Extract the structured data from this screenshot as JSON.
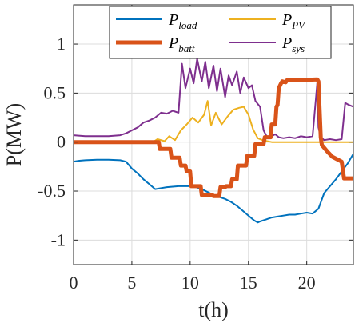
{
  "chart_data": {
    "type": "line",
    "xlabel": "t(h)",
    "ylabel": "P(MW)",
    "xlim": [
      0,
      24
    ],
    "ylim": [
      -1.25,
      1.4
    ],
    "xticks": [
      0,
      5,
      10,
      15,
      20
    ],
    "xtick_labels": [
      "0",
      "5",
      "10",
      "15",
      "20"
    ],
    "yticks": [
      -1,
      -0.5,
      0,
      0.5,
      1
    ],
    "ytick_labels": [
      "-1",
      "-0.5",
      "0",
      "0.5",
      "1"
    ],
    "grid": true,
    "legend_position": "top-center",
    "series": [
      {
        "name": "P_load",
        "legend_main": "P",
        "legend_sub": "load",
        "color": "#0072BD",
        "linewidth": 2,
        "x": [
          0,
          0.5,
          1,
          2,
          3,
          4,
          4.5,
          5,
          5.5,
          6,
          6.5,
          7,
          7.5,
          8,
          9,
          10,
          10.5,
          11,
          11.5,
          12,
          12.5,
          13,
          13.5,
          14,
          14.5,
          15,
          15.5,
          15.8,
          16,
          16.5,
          17,
          17.5,
          18,
          18.5,
          19,
          19.5,
          20,
          20.5,
          21,
          21.5,
          22,
          22.5,
          23,
          23.5,
          24
        ],
        "y": [
          -0.2,
          -0.19,
          -0.185,
          -0.18,
          -0.18,
          -0.185,
          -0.2,
          -0.27,
          -0.32,
          -0.38,
          -0.43,
          -0.48,
          -0.47,
          -0.46,
          -0.45,
          -0.45,
          -0.46,
          -0.48,
          -0.51,
          -0.54,
          -0.56,
          -0.58,
          -0.61,
          -0.65,
          -0.7,
          -0.75,
          -0.8,
          -0.82,
          -0.81,
          -0.79,
          -0.77,
          -0.76,
          -0.75,
          -0.74,
          -0.74,
          -0.73,
          -0.72,
          -0.73,
          -0.68,
          -0.52,
          -0.45,
          -0.38,
          -0.3,
          -0.22,
          -0.12
        ]
      },
      {
        "name": "P_PV",
        "legend_main": "P",
        "legend_sub": "PV",
        "color": "#EDB120",
        "linewidth": 2,
        "x": [
          0,
          6.8,
          7.2,
          7.8,
          8.2,
          8.7,
          9.2,
          9.7,
          10.2,
          10.7,
          11.2,
          11.5,
          11.8,
          12.2,
          12.7,
          13.2,
          13.7,
          14.2,
          14.6,
          15.0,
          15.4,
          15.8,
          16.2,
          17,
          24
        ],
        "y": [
          0,
          0,
          0.03,
          0.01,
          0.06,
          0.02,
          0.12,
          0.18,
          0.25,
          0.2,
          0.28,
          0.42,
          0.17,
          0.3,
          0.18,
          0.26,
          0.33,
          0.35,
          0.36,
          0.28,
          0.13,
          0.04,
          0.02,
          0,
          0
        ]
      },
      {
        "name": "P_batt",
        "legend_main": "P",
        "legend_sub": "batt",
        "color": "#D95319",
        "linewidth": 5,
        "x": [
          0,
          7.3,
          7.4,
          8.3,
          8.4,
          9.1,
          9.2,
          9.6,
          9.7,
          10.0,
          10.1,
          10.9,
          11.0,
          11.9,
          12.0,
          12.5,
          12.6,
          13.0,
          13.1,
          13.5,
          13.6,
          14.0,
          14.1,
          14.8,
          14.9,
          15.5,
          15.6,
          16.0,
          16.1,
          16.3,
          16.4,
          16.9,
          17.0,
          17.3,
          17.4,
          17.5,
          17.6,
          17.8,
          17.9,
          18.2,
          18.3,
          18.8,
          20.9,
          21.0,
          21.2,
          21.3,
          21.8,
          22.2,
          23.0,
          23.2,
          24
        ],
        "y": [
          0,
          0,
          -0.07,
          -0.07,
          -0.16,
          -0.16,
          -0.24,
          -0.24,
          -0.3,
          -0.3,
          -0.45,
          -0.45,
          -0.54,
          -0.54,
          -0.55,
          -0.55,
          -0.46,
          -0.46,
          -0.45,
          -0.45,
          -0.38,
          -0.38,
          -0.24,
          -0.24,
          -0.14,
          -0.14,
          -0.02,
          -0.02,
          -0.02,
          -0.02,
          0.05,
          0.05,
          0.18,
          0.18,
          0.36,
          0.38,
          0.55,
          0.6,
          0.62,
          0.61,
          0.63,
          0.63,
          0.64,
          0.62,
          0.05,
          -0.03,
          -0.1,
          -0.15,
          -0.2,
          -0.37,
          -0.37
        ]
      },
      {
        "name": "P_sys",
        "legend_main": "P",
        "legend_sub": "sys",
        "color": "#7E2F8E",
        "linewidth": 2,
        "x": [
          0,
          1,
          2,
          3,
          4,
          4.5,
          5,
          5.5,
          6,
          6.5,
          7,
          7.5,
          8,
          8.5,
          9,
          9.3,
          9.6,
          10,
          10.3,
          10.6,
          11,
          11.3,
          11.6,
          12,
          12.3,
          12.6,
          13,
          13.3,
          13.6,
          14,
          14.3,
          14.6,
          15,
          15.3,
          15.6,
          16,
          16.3,
          16.6,
          17,
          17.3,
          17.6,
          18,
          18.5,
          19,
          19.5,
          20,
          20.5,
          20.9,
          21.0,
          21.2,
          21.5,
          22,
          22.5,
          23,
          23.3,
          23.6,
          24
        ],
        "y": [
          0.07,
          0.06,
          0.06,
          0.06,
          0.07,
          0.09,
          0.12,
          0.15,
          0.2,
          0.22,
          0.25,
          0.3,
          0.29,
          0.32,
          0.3,
          0.8,
          0.55,
          0.75,
          0.6,
          0.85,
          0.62,
          0.82,
          0.55,
          0.78,
          0.52,
          0.75,
          0.46,
          0.68,
          0.58,
          0.72,
          0.5,
          0.66,
          0.55,
          0.58,
          0.42,
          0.36,
          0.12,
          0.05,
          0.06,
          0.08,
          0.05,
          0.04,
          0.05,
          0.04,
          0.06,
          0.05,
          0.06,
          0.6,
          0.15,
          0.05,
          0.02,
          0.03,
          0.02,
          0.03,
          0.4,
          0.38,
          0.36
        ]
      }
    ]
  }
}
